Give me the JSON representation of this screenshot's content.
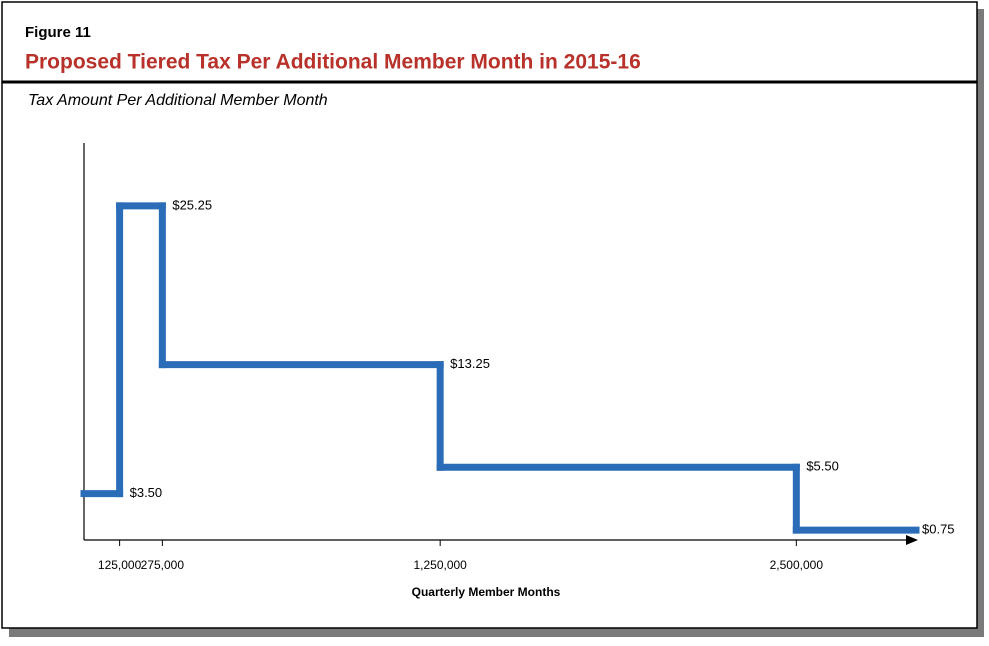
{
  "chart_data": {
    "type": "step",
    "figure_label": "Figure 11",
    "title": "Proposed Tiered Tax Per Additional Member Month in 2015-16",
    "subtitle": "Tax Amount Per Additional Member Month",
    "x_label": "Quarterly Member Months",
    "x": [
      0,
      125000,
      275000,
      1250000,
      2500000
    ],
    "series": [
      {
        "color": "#2b6cb8",
        "values": [
          3.5,
          25.25,
          13.25,
          5.5,
          0.75
        ],
        "value_labels": [
          "$3.50",
          "$25.25",
          "$13.25",
          "$5.50",
          "$0.75"
        ]
      }
    ],
    "xlim": [
      0,
      2920000
    ],
    "ylim": [
      0,
      30
    ],
    "xticks": [
      {
        "value": 125000,
        "label": "125,000"
      },
      {
        "value": 275000,
        "label": "275,000"
      },
      {
        "value": 1250000,
        "label": "1,250,000"
      },
      {
        "value": 2500000,
        "label": "2,500,000"
      }
    ],
    "title_color": "#b8312a"
  }
}
